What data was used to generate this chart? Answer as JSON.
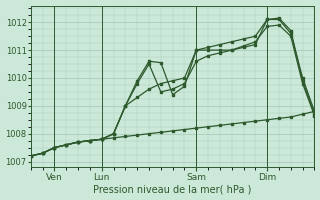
{
  "background_color": "#cce8d8",
  "grid_color": "#a8ccbc",
  "line_color": "#2d5a2d",
  "text_color": "#2d5a2d",
  "xlabel": "Pression niveau de la mer( hPa )",
  "ylim": [
    1006.8,
    1012.6
  ],
  "yticks": [
    1007,
    1008,
    1009,
    1010,
    1011,
    1012
  ],
  "xlim": [
    0,
    72
  ],
  "xtick_positions": [
    6,
    18,
    42,
    60
  ],
  "xtick_labels": [
    "Ven",
    "Lun",
    "Sam",
    "Dim"
  ],
  "vline_positions": [
    6,
    18,
    42,
    60
  ],
  "series1": {
    "x": [
      0,
      3,
      6,
      9,
      12,
      15,
      18,
      21,
      24,
      27,
      30,
      33,
      36,
      39,
      42,
      45,
      48,
      51,
      54,
      57,
      60,
      63,
      66,
      69,
      72
    ],
    "y": [
      1007.2,
      1007.3,
      1007.5,
      1007.6,
      1007.7,
      1007.75,
      1007.8,
      1007.85,
      1007.9,
      1007.95,
      1008.0,
      1008.05,
      1008.1,
      1008.15,
      1008.2,
      1008.25,
      1008.3,
      1008.35,
      1008.4,
      1008.45,
      1008.5,
      1008.55,
      1008.6,
      1008.7,
      1008.8
    ]
  },
  "series2": {
    "x": [
      0,
      3,
      6,
      9,
      12,
      15,
      18,
      21,
      24,
      27,
      30,
      33,
      36,
      39,
      42,
      45,
      48,
      51,
      54,
      57,
      60,
      63,
      66,
      69,
      72
    ],
    "y": [
      1007.2,
      1007.3,
      1007.5,
      1007.6,
      1007.7,
      1007.75,
      1007.8,
      1008.0,
      1009.0,
      1009.3,
      1009.6,
      1009.8,
      1009.9,
      1010.0,
      1011.0,
      1011.1,
      1011.2,
      1011.3,
      1011.4,
      1011.5,
      1012.1,
      1012.15,
      1011.7,
      1009.9,
      1008.7
    ]
  },
  "series3": {
    "x": [
      0,
      3,
      6,
      9,
      12,
      15,
      18,
      21,
      24,
      27,
      30,
      33,
      36,
      39,
      42,
      45,
      48,
      51,
      54,
      57,
      60,
      63,
      66,
      69,
      72
    ],
    "y": [
      1007.2,
      1007.3,
      1007.5,
      1007.6,
      1007.7,
      1007.75,
      1007.8,
      1008.0,
      1009.0,
      1009.8,
      1010.5,
      1009.5,
      1009.6,
      1009.8,
      1010.6,
      1010.8,
      1010.9,
      1011.0,
      1011.1,
      1011.2,
      1012.1,
      1012.1,
      1011.6,
      1010.0,
      1008.8
    ]
  },
  "series4": {
    "x": [
      0,
      3,
      6,
      9,
      12,
      15,
      18,
      21,
      24,
      27,
      30,
      33,
      36,
      39,
      42,
      45,
      48,
      51,
      54,
      57,
      60,
      63,
      66,
      69,
      72
    ],
    "y": [
      1007.2,
      1007.3,
      1007.5,
      1007.6,
      1007.7,
      1007.75,
      1007.8,
      1008.0,
      1009.0,
      1009.9,
      1010.6,
      1010.55,
      1009.4,
      1009.7,
      1011.0,
      1011.0,
      1011.0,
      1011.0,
      1011.15,
      1011.3,
      1011.85,
      1011.9,
      1011.5,
      1009.8,
      1008.65
    ]
  }
}
